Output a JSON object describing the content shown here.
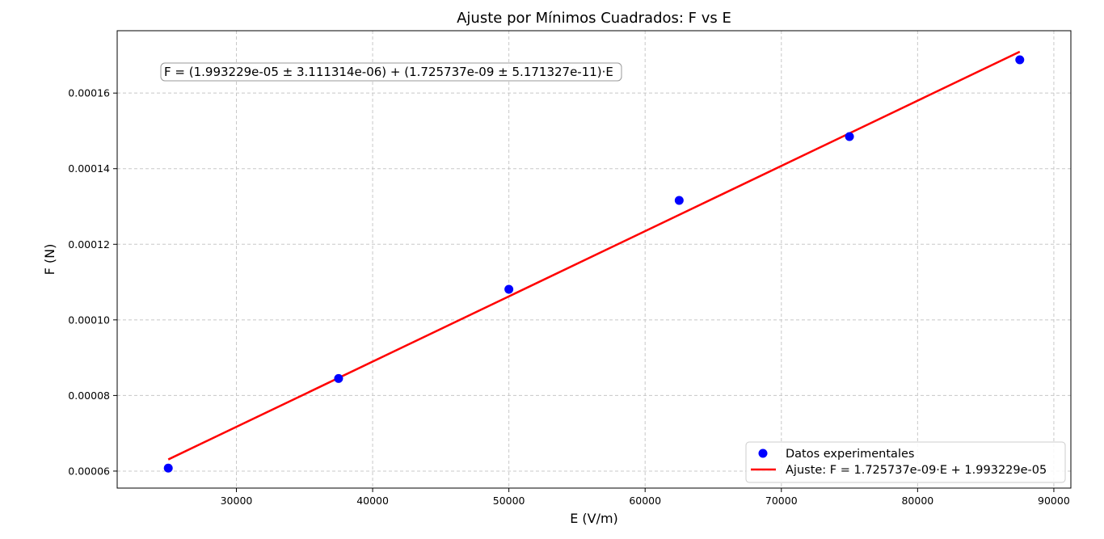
{
  "chart_data": {
    "type": "scatter",
    "title": "Ajuste por Mínimos Cuadrados: F vs E",
    "xlabel": "E (V/m)",
    "ylabel": "F (N)",
    "xlim": [
      21250,
      91250
    ],
    "ylim": [
      5.55e-05,
      0.0001765
    ],
    "xticks": [
      30000,
      40000,
      50000,
      60000,
      70000,
      80000,
      90000
    ],
    "xtick_labels": [
      "30000",
      "40000",
      "50000",
      "60000",
      "70000",
      "80000",
      "90000"
    ],
    "yticks": [
      6e-05,
      8e-05,
      0.0001,
      0.00012,
      0.00014,
      0.00016
    ],
    "ytick_labels": [
      "0.00006",
      "0.00008",
      "0.00010",
      "0.00012",
      "0.00014",
      "0.00016"
    ],
    "grid": true,
    "legend_position": "bottom-right",
    "annotation": "F = (1.993229e-05 ± 3.111314e-06) + (1.725737e-09 ± 5.171327e-11)·E",
    "series": [
      {
        "name": "Datos experimentales",
        "kind": "scatter",
        "color": "#0000ff",
        "x": [
          25000,
          37500,
          50000,
          62500,
          75000,
          87500
        ],
        "y": [
          6.08e-05,
          8.45e-05,
          0.0001081,
          0.0001316,
          0.0001485,
          0.0001688
        ]
      },
      {
        "name": "Ajuste: F = 1.725737e-09·E + 1.993229e-05",
        "kind": "line",
        "color": "#ff0000",
        "x": [
          25000,
          87500
        ],
        "y": [
          6.307572e-05,
          0.00017093428
        ]
      }
    ]
  }
}
